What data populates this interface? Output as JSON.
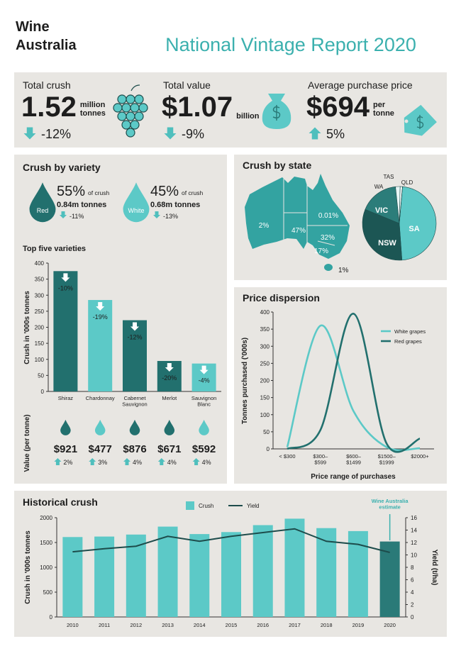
{
  "header": {
    "logo": [
      "Wine",
      "Australia"
    ],
    "title": "National Vintage Report 2020"
  },
  "kpis": [
    {
      "label": "Total crush",
      "value": "1.52",
      "unit": "million tonnes",
      "change": "-12%",
      "direction": "down"
    },
    {
      "label": "Total value",
      "value": "$1.07",
      "unit": "billion",
      "change": "-9%",
      "direction": "down"
    },
    {
      "label": "Average purchase price",
      "value": "$694",
      "unit": "per tonne",
      "change": "5%",
      "direction": "up"
    }
  ],
  "variety": {
    "title": "Crush by variety",
    "groups": [
      {
        "name": "Red",
        "share": "55%",
        "share_note": "of crush",
        "tonnes": "0.84m tonnes",
        "change": "-11%",
        "direction": "down",
        "color": "#22706e"
      },
      {
        "name": "White",
        "share": "45%",
        "share_note": "of crush",
        "tonnes": "0.68m tonnes",
        "change": "-13%",
        "direction": "down",
        "color": "#5cc9c7"
      }
    ]
  },
  "chart_data": [
    {
      "type": "bar",
      "title": "Top five varieties",
      "y_label": "Crush in '000s tonnes",
      "categories": [
        "Shiraz",
        "Chardonnay",
        "Cabernet Sauvignon",
        "Merlot",
        "Sauvignon Blanc"
      ],
      "values": [
        375,
        285,
        222,
        95,
        87
      ],
      "colors": [
        "#22706e",
        "#5cc9c7",
        "#22706e",
        "#22706e",
        "#5cc9c7"
      ],
      "changes": [
        "-10%",
        "-19%",
        "-12%",
        "-20%",
        "-4%"
      ],
      "price_label": "Value (per tonne)",
      "prices": [
        "$921",
        "$477",
        "$876",
        "$671",
        "$592"
      ],
      "price_changes": [
        "2%",
        "3%",
        "4%",
        "4%",
        "4%"
      ],
      "ylim": [
        0,
        400
      ],
      "yticks": [
        0,
        50,
        100,
        150,
        200,
        250,
        300,
        350,
        400
      ]
    },
    {
      "type": "pie",
      "title": "Crush by state",
      "categories": [
        "SA",
        "NSW",
        "VIC",
        "WA",
        "TAS",
        "QLD"
      ],
      "values": [
        47,
        32,
        17,
        2,
        1,
        0.01
      ],
      "value_labels": [
        "47%",
        "32%",
        "17%",
        "2%",
        "1%",
        "0.01%"
      ],
      "colors": [
        "#5cc9c7",
        "#1c5654",
        "#2c7d7a",
        "#e9f6f6",
        "#f4fbfb",
        "#d9efef"
      ]
    },
    {
      "type": "line",
      "title": "Price dispersion",
      "x_label": "Price range of purchases",
      "y_label": "Tonnes purchased ('000s)",
      "categories": [
        "< $300",
        "$300–$599",
        "$600–$1499",
        "$1500–$1999",
        "$2000+"
      ],
      "series": [
        {
          "name": "White grapes",
          "color": "#5cc9c7",
          "values": [
            5,
            360,
            110,
            5,
            2
          ]
        },
        {
          "name": "Red grapes",
          "color": "#22706e",
          "values": [
            0,
            55,
            395,
            15,
            30
          ]
        }
      ],
      "ylim": [
        0,
        400
      ],
      "yticks": [
        0,
        50,
        100,
        150,
        200,
        250,
        300,
        350,
        400
      ],
      "legend": "upper right"
    },
    {
      "type": "bar-line",
      "title": "Historical crush",
      "y_label": "Crush in '000s tonnes",
      "y2_label": "Yield (t/ha)",
      "annotation": "Wine Australia estimate",
      "categories": [
        "2010",
        "2011",
        "2012",
        "2013",
        "2014",
        "2015",
        "2016",
        "2017",
        "2018",
        "2019",
        "2020"
      ],
      "series": [
        {
          "name": "Crush",
          "type": "bar",
          "color": "#5cc9c7",
          "colors": [
            "#5cc9c7",
            "#5cc9c7",
            "#5cc9c7",
            "#5cc9c7",
            "#5cc9c7",
            "#5cc9c7",
            "#5cc9c7",
            "#5cc9c7",
            "#5cc9c7",
            "#5cc9c7",
            "#2a7a78"
          ],
          "values": [
            1610,
            1620,
            1660,
            1820,
            1670,
            1710,
            1850,
            1980,
            1790,
            1730,
            1520
          ]
        },
        {
          "name": "Yield",
          "type": "line",
          "axis": "y2",
          "color": "#1d4c4b",
          "values": [
            10.5,
            11.0,
            11.4,
            13.0,
            12.2,
            13.0,
            13.6,
            14.2,
            12.2,
            11.7,
            10.4
          ]
        }
      ],
      "ylim": [
        0,
        2000
      ],
      "yticks": [
        0,
        500,
        1000,
        1500,
        2000
      ],
      "y2lim": [
        0,
        16
      ],
      "y2ticks": [
        0,
        2,
        4,
        6,
        8,
        10,
        12,
        14,
        16
      ],
      "legend": "top"
    }
  ]
}
